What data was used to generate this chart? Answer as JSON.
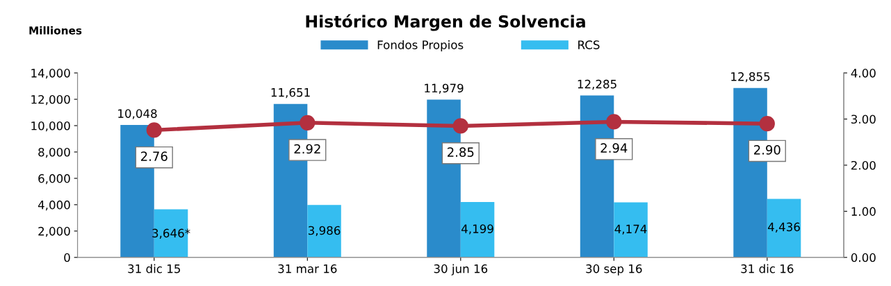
{
  "chart_data": {
    "type": "bar",
    "title": "Histórico Margen de Solvencia",
    "ylabel": "Milliones",
    "categories": [
      "31 dic 15",
      "31 mar 16",
      "30 jun 16",
      "30 sep 16",
      "31 dic 16"
    ],
    "series": [
      {
        "name": "Fondos Propios",
        "color": "#2a8bcb",
        "values": [
          10048,
          11651,
          11979,
          12285,
          12855
        ],
        "value_labels": [
          "10,048",
          "11,651",
          "11,979",
          "12,285",
          "12,855"
        ]
      },
      {
        "name": "RCS",
        "color": "#35bdf0",
        "values": [
          3646,
          3986,
          4199,
          4174,
          4436
        ],
        "value_labels": [
          "3,646*",
          "3,986",
          "4,199",
          "4,174",
          "4,436"
        ]
      },
      {
        "type": "line",
        "axis": "y2",
        "color": "#b3303f",
        "marker": "circle",
        "values": [
          2.76,
          2.92,
          2.85,
          2.94,
          2.9
        ],
        "value_labels": [
          "2.76",
          "2.92",
          "2.85",
          "2.94",
          "2.90"
        ]
      }
    ],
    "ylim": [
      0,
      14000
    ],
    "yticks": [
      0,
      {
        "value": 2000,
        "label": "2,000"
      },
      {
        "value": 4000,
        "label": "4,000"
      },
      {
        "value": 6000,
        "label": "6,000"
      },
      {
        "value": 8000,
        "label": "8,000"
      },
      {
        "value": 10000,
        "label": "10,000"
      },
      {
        "value": 12000,
        "label": "12,000"
      },
      {
        "value": 14000,
        "label": "14,000"
      }
    ],
    "y2lim": [
      0,
      4
    ],
    "y2ticks": [
      {
        "value": 0,
        "label": "0.00"
      },
      {
        "value": 1,
        "label": "1.00"
      },
      {
        "value": 2,
        "label": "2.00"
      },
      {
        "value": 3,
        "label": "3.00"
      },
      {
        "value": 4,
        "label": "4.00"
      }
    ],
    "grid": false,
    "legend": "top"
  }
}
